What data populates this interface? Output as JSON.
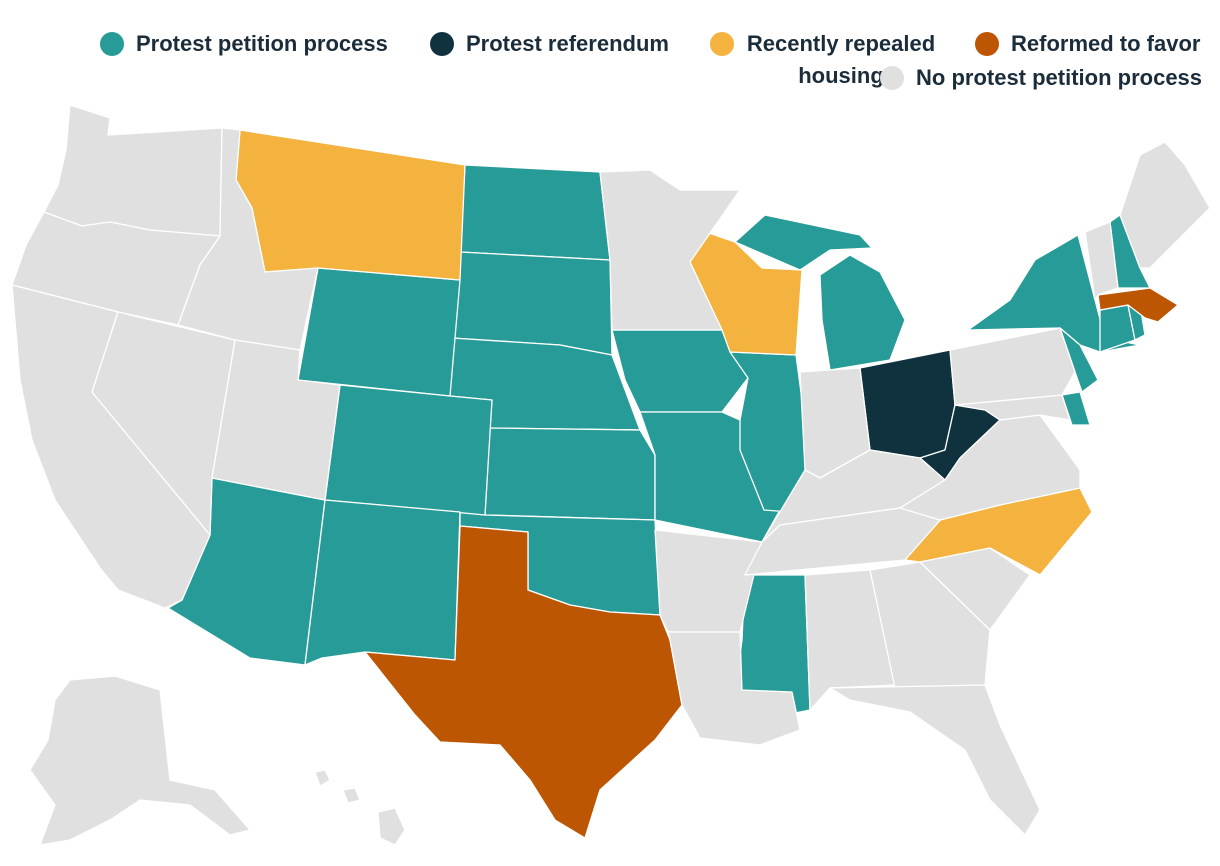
{
  "legend": {
    "items": [
      {
        "label": "Protest petition process",
        "color": "#279b97"
      },
      {
        "label": "Protest referendum",
        "color": "#10323f"
      },
      {
        "label": "Recently repealed housing",
        "color": "#f4b23e"
      },
      {
        "label": "Reformed to favor",
        "color": "#bd5602"
      },
      {
        "label": "No protest petition process",
        "color": "#e0e0e0"
      }
    ]
  },
  "colors": {
    "petition": "#279b97",
    "referendum": "#10323f",
    "repealed": "#f4b23e",
    "reformed": "#bd5602",
    "none": "#e0e0e0"
  },
  "states": {
    "protest_petition_process": [
      "ND",
      "SD",
      "NE",
      "KS",
      "OK",
      "WY",
      "CO",
      "AZ",
      "NM",
      "IA",
      "MO",
      "IL",
      "MI",
      "MS",
      "NY",
      "NH",
      "NJ",
      "CT",
      "DE",
      "RI"
    ],
    "protest_referendum": [
      "OH",
      "WV"
    ],
    "recently_repealed": [
      "MT",
      "WI",
      "NC"
    ],
    "reformed_to_favor": [
      "TX",
      "MA"
    ],
    "no_protest_petition_process": [
      "WA",
      "OR",
      "CA",
      "NV",
      "ID",
      "UT",
      "MN",
      "AR",
      "LA",
      "IN",
      "KY",
      "TN",
      "AL",
      "GA",
      "FL",
      "SC",
      "VA",
      "MD",
      "PA",
      "VT",
      "ME",
      "AK",
      "HI"
    ]
  }
}
